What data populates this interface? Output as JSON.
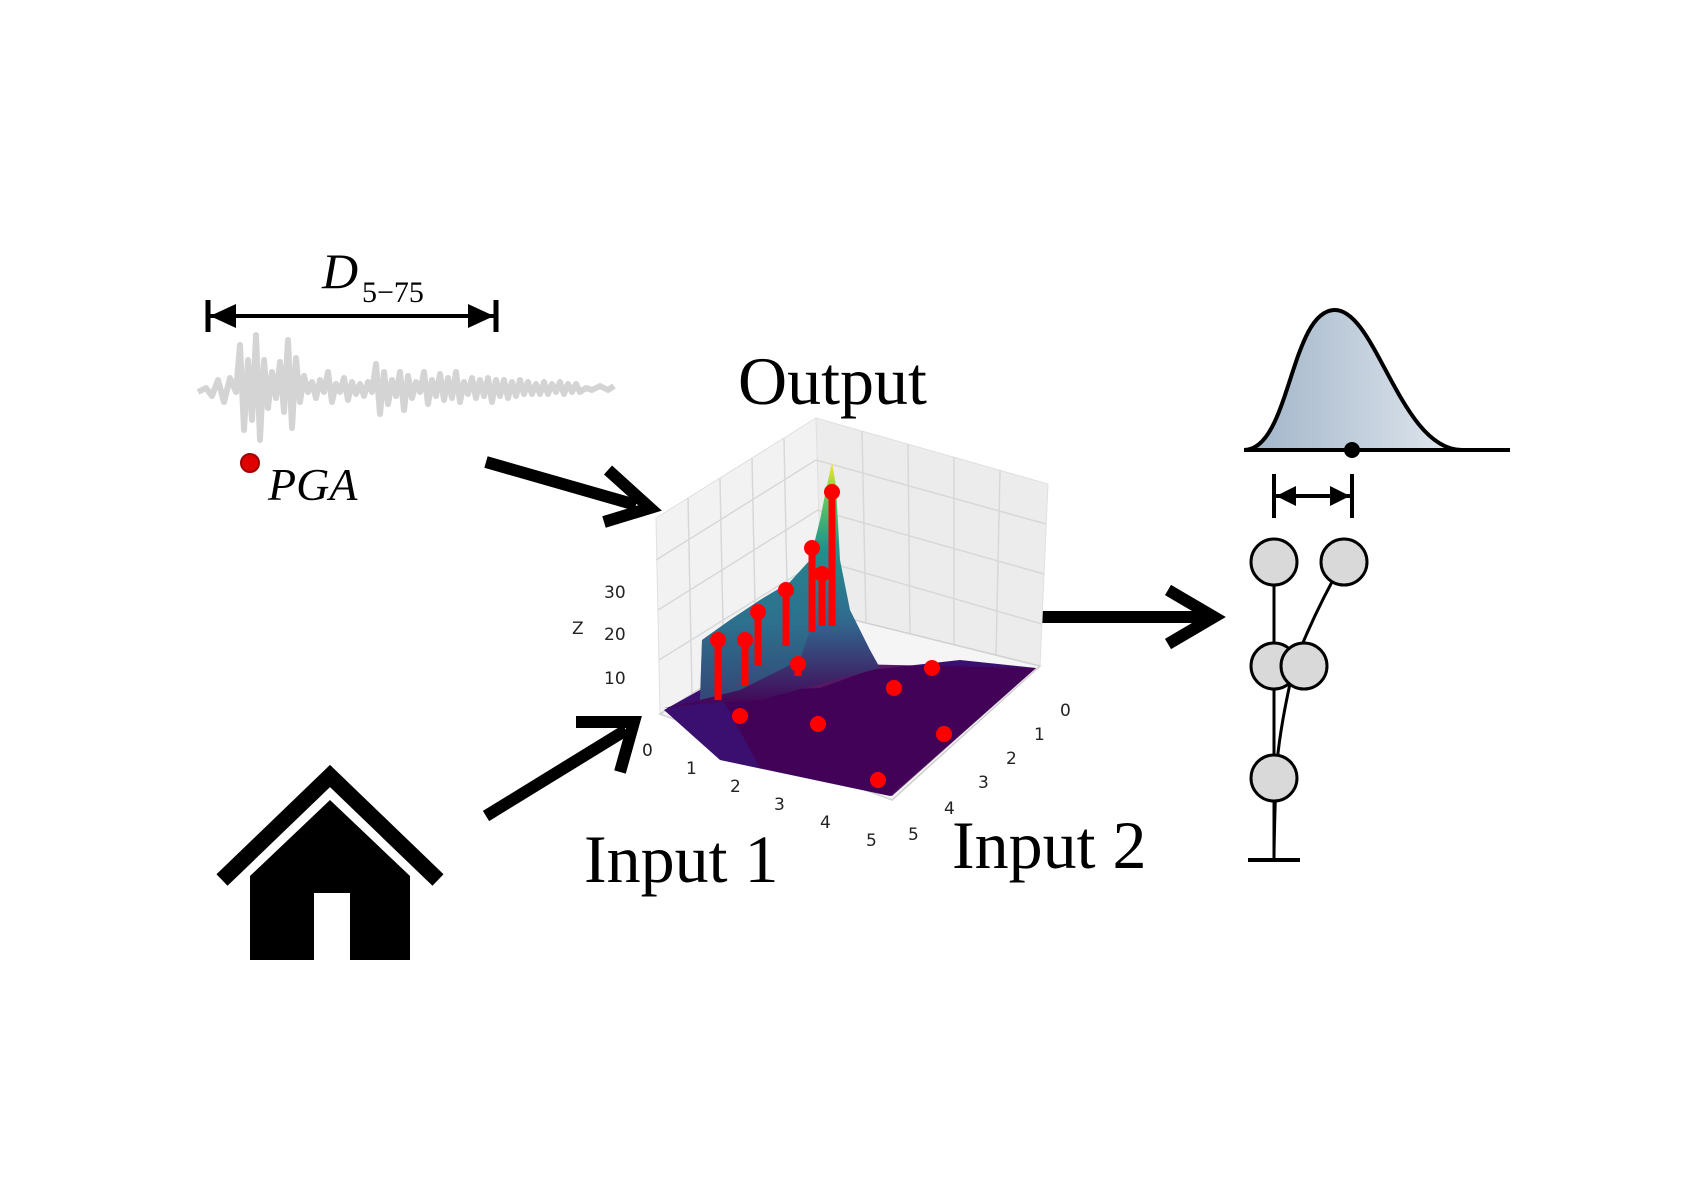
{
  "labels": {
    "duration_main": "D",
    "duration_sub": "5−75",
    "pga": "PGA",
    "output": "Output",
    "input1": "Input 1",
    "input2": "Input 2",
    "z_axis": "Z"
  },
  "ticks": {
    "z": [
      "10",
      "20",
      "30"
    ],
    "input1": [
      "0",
      "1",
      "2",
      "3",
      "4",
      "5"
    ],
    "input2": [
      "0",
      "1",
      "2",
      "3",
      "4",
      "5"
    ]
  },
  "colors": {
    "signal": "#d4d4d4",
    "points": "#ff0000",
    "surface_low": "#440154",
    "surface_mid": "#21918c",
    "surface_high": "#fde725",
    "distribution_fill": "#b9c8d8",
    "node_fill": "#d9d9d9",
    "arrow": "#000000"
  },
  "icons": [
    "home-icon",
    "seismic-record-icon",
    "building-model-icon",
    "probability-distribution-icon"
  ]
}
